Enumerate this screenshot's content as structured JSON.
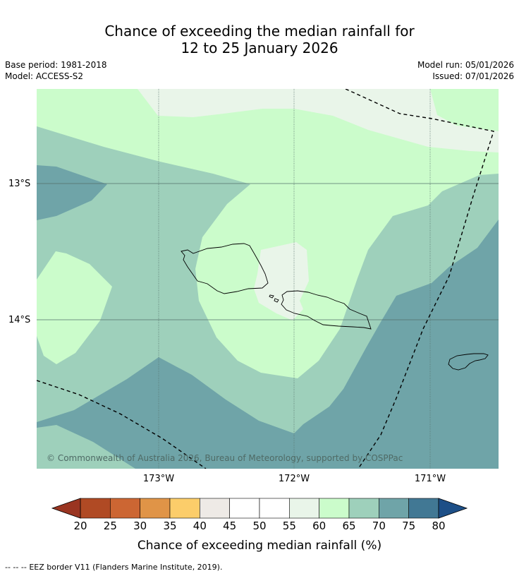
{
  "title": {
    "line1": "Chance of exceeding the median rainfall for",
    "line2": "12 to 25 January 2026"
  },
  "meta": {
    "base_period": "Base period: 1981-2018",
    "model": "Model: ACCESS-S2",
    "model_run": "Model run: 05/01/2026",
    "issued": "Issued: 07/01/2026"
  },
  "map": {
    "lat_labels": [
      "13°S",
      "14°S"
    ],
    "lon_labels": [
      "173°W",
      "172°W",
      "171°W"
    ],
    "copyright": "© Commonwealth of Australia 2026, Bureau of Meteorology, supported by COSPPac",
    "colors": {
      "c55_60": "#e9f5e9",
      "c60_65": "#cbfccb",
      "c65_70": "#9ed0bb",
      "c70_75": "#6fa4a8"
    }
  },
  "colorbar": {
    "ticks": [
      "20",
      "25",
      "30",
      "35",
      "40",
      "45",
      "50",
      "55",
      "60",
      "65",
      "70",
      "75",
      "80"
    ],
    "colors": [
      "#b04a24",
      "#cc6633",
      "#e09447",
      "#fccd6a",
      "#eeeae6",
      "#ffffff",
      "#ffffff",
      "#e9f5e9",
      "#cbfccb",
      "#9ed0bb",
      "#6fa4a8",
      "#417894"
    ],
    "under_color": "#9a3521",
    "over_color": "#1d4f87",
    "title": "Chance of exceeding median rainfall (%)"
  },
  "footer": {
    "dash": "--  --  --",
    "text": "EEZ border V11 (Flanders Marine Institute, 2019)."
  }
}
